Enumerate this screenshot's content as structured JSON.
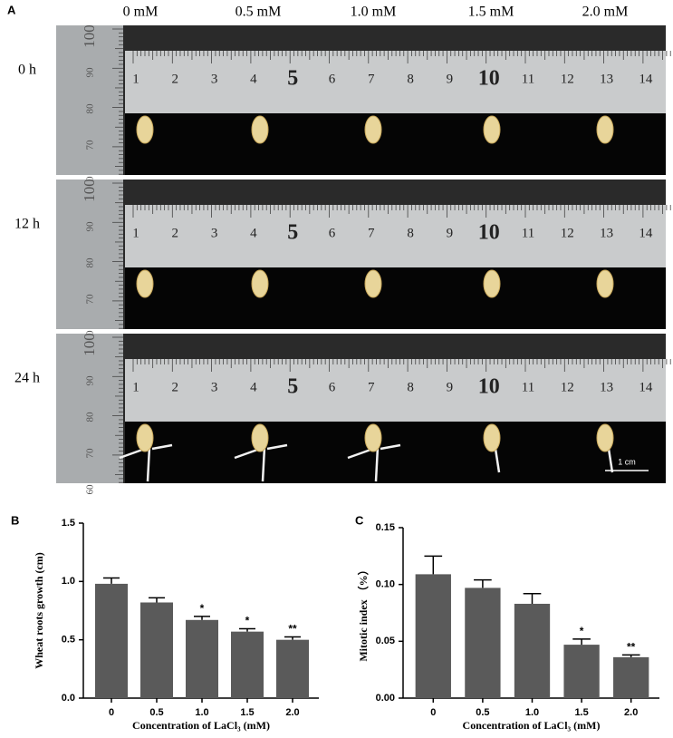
{
  "photo_panel": {
    "label": "A",
    "concentrations": [
      "0 mM",
      "0.5 mM",
      "1.0 mM",
      "1.5 mM",
      "2.0 mM"
    ],
    "times": [
      "0 h",
      "12 h",
      "24 h"
    ],
    "ruler_cm": [
      "1",
      "2",
      "3",
      "4",
      "5",
      "6",
      "7",
      "8",
      "9",
      "10",
      "11",
      "12",
      "13",
      "14"
    ],
    "ruler_mm": [
      "100",
      "90",
      "80",
      "70",
      "60"
    ],
    "scale_bar": "1 cm"
  },
  "chart_data": [
    {
      "type": "bar",
      "panel_label": "B",
      "y_label": "Wheat roots growth (cm)",
      "x_label": "Concentration of LaCl₃ (mM)",
      "categories": [
        "0",
        "0.5",
        "1.0",
        "1.5",
        "2.0"
      ],
      "values": [
        0.98,
        0.82,
        0.67,
        0.57,
        0.5
      ],
      "errors": [
        0.05,
        0.04,
        0.03,
        0.025,
        0.025
      ],
      "annotations": [
        null,
        null,
        "*",
        "*",
        "**"
      ],
      "color": "#5a5a5a",
      "ylim": [
        0,
        1.5
      ],
      "yticks": [
        {
          "value": 0,
          "label": "0.0"
        },
        {
          "value": 0.5,
          "label": "0.5"
        },
        {
          "value": 1,
          "label": "1.0"
        },
        {
          "value": 1.5,
          "label": "1.5"
        }
      ]
    },
    {
      "type": "bar",
      "panel_label": "C",
      "y_label": "Mitotic index （%）",
      "x_label": "Concentration  of LaCl₃ (mM)",
      "categories": [
        "0",
        "0.5",
        "1.0",
        "1.5",
        "2.0"
      ],
      "values": [
        0.109,
        0.097,
        0.083,
        0.047,
        0.036
      ],
      "errors": [
        0.016,
        0.007,
        0.009,
        0.005,
        0.002
      ],
      "annotations": [
        null,
        null,
        null,
        "*",
        "**"
      ],
      "color": "#5a5a5a",
      "ylim": [
        0,
        0.15
      ],
      "yticks": [
        {
          "value": 0,
          "label": "0.00"
        },
        {
          "value": 0.05,
          "label": "0.05"
        },
        {
          "value": 0.1,
          "label": "0.10"
        },
        {
          "value": 0.15,
          "label": "0.15"
        }
      ]
    }
  ]
}
